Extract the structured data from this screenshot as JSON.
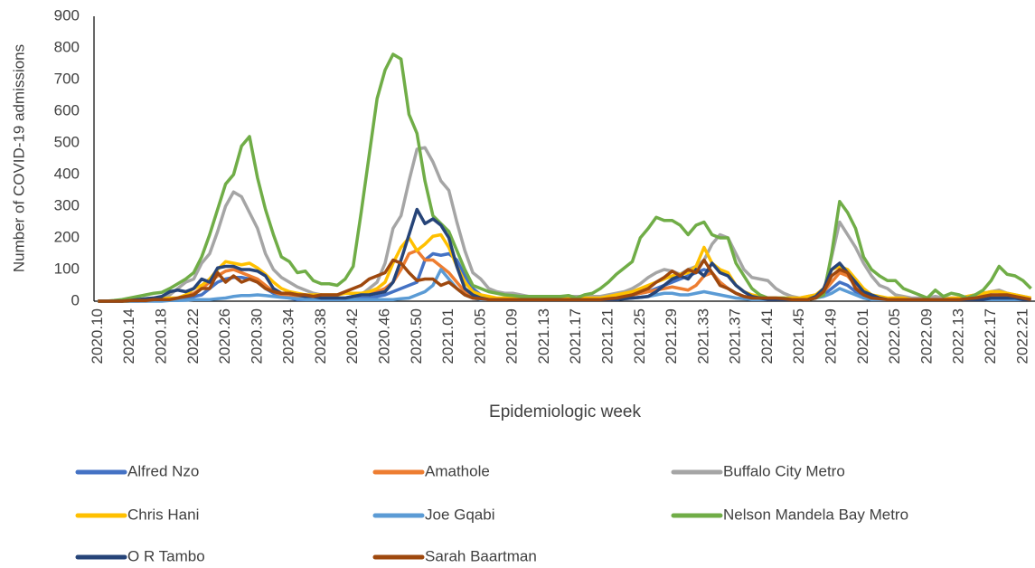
{
  "chart_data": {
    "type": "line",
    "y_label": "Number of COVID-19 admissions",
    "x_label": "Epidemiologic week",
    "categories": [
      "2020.10",
      null,
      null,
      null,
      "2020.14",
      null,
      null,
      null,
      "2020.18",
      null,
      null,
      null,
      "2020.22",
      null,
      null,
      null,
      "2020.26",
      null,
      null,
      null,
      "2020.30",
      null,
      null,
      null,
      "2020.34",
      null,
      null,
      null,
      "2020.38",
      null,
      null,
      null,
      "2020.42",
      null,
      null,
      null,
      "2020.46",
      null,
      null,
      null,
      "2020.50",
      null,
      null,
      null,
      "2021.01",
      null,
      null,
      null,
      "2021.05",
      null,
      null,
      null,
      "2021.09",
      null,
      null,
      null,
      "2021.13",
      null,
      null,
      null,
      "2021.17",
      null,
      null,
      null,
      "2021.21",
      null,
      null,
      null,
      "2021.25",
      null,
      null,
      null,
      "2021.29",
      null,
      null,
      null,
      "2021.33",
      null,
      null,
      null,
      "2021.37",
      null,
      null,
      null,
      "2021.41",
      null,
      null,
      null,
      "2021.45",
      null,
      null,
      null,
      "2021.49",
      null,
      null,
      null,
      "2022.01",
      null,
      null,
      null,
      "2022.05",
      null,
      null,
      null,
      "2022.09",
      null,
      null,
      null,
      "2022.13",
      null,
      null,
      null,
      "2022.17",
      null,
      null,
      null,
      "2022.21",
      null
    ],
    "ylim": [
      0,
      900
    ],
    "yticks": [
      0,
      100,
      200,
      300,
      400,
      500,
      600,
      700,
      800,
      900
    ],
    "legend": "bottom",
    "series": [
      {
        "name": "Alfred Nzo",
        "color": "#4472c4",
        "values": [
          0,
          0,
          0,
          0,
          0,
          0,
          2,
          2,
          5,
          5,
          5,
          10,
          15,
          20,
          40,
          60,
          70,
          75,
          75,
          70,
          60,
          40,
          25,
          15,
          10,
          5,
          5,
          5,
          5,
          5,
          5,
          5,
          5,
          10,
          10,
          15,
          20,
          30,
          40,
          50,
          60,
          130,
          150,
          145,
          150,
          130,
          80,
          40,
          20,
          10,
          5,
          5,
          5,
          5,
          5,
          5,
          5,
          5,
          5,
          5,
          5,
          5,
          5,
          5,
          5,
          10,
          15,
          20,
          25,
          30,
          40,
          50,
          60,
          70,
          80,
          90,
          100,
          90,
          60,
          40,
          25,
          15,
          10,
          5,
          5,
          5,
          5,
          5,
          5,
          5,
          10,
          20,
          40,
          60,
          50,
          30,
          15,
          10,
          5,
          5,
          5,
          5,
          5,
          5,
          5,
          5,
          5,
          5,
          5,
          5,
          5,
          10,
          10,
          15,
          10,
          10,
          5,
          5
        ]
      },
      {
        "name": "Amathole",
        "color": "#ed7d31",
        "values": [
          0,
          0,
          0,
          0,
          0,
          0,
          0,
          2,
          2,
          5,
          10,
          15,
          25,
          40,
          60,
          80,
          95,
          100,
          90,
          80,
          70,
          50,
          30,
          20,
          15,
          10,
          10,
          10,
          10,
          10,
          10,
          10,
          15,
          20,
          25,
          30,
          40,
          60,
          100,
          150,
          160,
          130,
          130,
          110,
          90,
          60,
          30,
          15,
          10,
          5,
          5,
          5,
          5,
          5,
          5,
          5,
          5,
          5,
          5,
          5,
          5,
          5,
          5,
          5,
          5,
          10,
          15,
          20,
          25,
          30,
          35,
          40,
          45,
          40,
          35,
          50,
          80,
          90,
          60,
          40,
          25,
          15,
          10,
          5,
          5,
          5,
          5,
          5,
          5,
          5,
          10,
          30,
          60,
          90,
          80,
          50,
          25,
          10,
          5,
          5,
          5,
          5,
          5,
          5,
          5,
          5,
          5,
          5,
          5,
          5,
          5,
          10,
          15,
          20,
          20,
          15,
          10,
          5
        ]
      },
      {
        "name": "Buffalo City Metro",
        "color": "#a5a5a5",
        "values": [
          0,
          0,
          0,
          0,
          2,
          5,
          8,
          10,
          12,
          20,
          40,
          60,
          70,
          120,
          150,
          220,
          300,
          345,
          330,
          280,
          230,
          150,
          100,
          75,
          60,
          45,
          35,
          25,
          20,
          15,
          10,
          10,
          15,
          20,
          40,
          60,
          120,
          230,
          270,
          380,
          480,
          485,
          440,
          380,
          350,
          250,
          160,
          90,
          70,
          40,
          30,
          25,
          25,
          20,
          15,
          15,
          15,
          15,
          15,
          15,
          15,
          15,
          15,
          15,
          20,
          25,
          30,
          40,
          55,
          75,
          90,
          100,
          95,
          85,
          100,
          110,
          130,
          180,
          210,
          200,
          150,
          100,
          75,
          70,
          65,
          40,
          25,
          15,
          10,
          15,
          20,
          30,
          140,
          250,
          210,
          170,
          120,
          80,
          50,
          40,
          20,
          15,
          10,
          10,
          10,
          15,
          10,
          10,
          10,
          15,
          20,
          25,
          30,
          35,
          25,
          20,
          15,
          10
        ]
      },
      {
        "name": "Chris Hani",
        "color": "#ffc000",
        "values": [
          0,
          0,
          0,
          0,
          0,
          2,
          5,
          5,
          8,
          10,
          10,
          20,
          40,
          50,
          70,
          100,
          125,
          120,
          115,
          120,
          105,
          85,
          60,
          40,
          30,
          25,
          20,
          20,
          20,
          20,
          20,
          25,
          25,
          25,
          30,
          40,
          60,
          120,
          170,
          200,
          160,
          180,
          205,
          210,
          170,
          110,
          60,
          30,
          20,
          15,
          10,
          10,
          10,
          10,
          10,
          10,
          10,
          10,
          10,
          10,
          10,
          10,
          10,
          10,
          15,
          20,
          25,
          30,
          40,
          50,
          60,
          70,
          80,
          85,
          90,
          110,
          170,
          120,
          100,
          90,
          50,
          30,
          20,
          15,
          10,
          10,
          10,
          10,
          10,
          15,
          20,
          40,
          100,
          110,
          100,
          70,
          40,
          20,
          15,
          10,
          10,
          10,
          5,
          5,
          5,
          5,
          5,
          10,
          10,
          15,
          20,
          25,
          30,
          30,
          25,
          20,
          15,
          10
        ]
      },
      {
        "name": "Joe Gqabi",
        "color": "#5b9bd5",
        "values": [
          0,
          0,
          0,
          0,
          0,
          0,
          0,
          0,
          0,
          2,
          2,
          3,
          5,
          5,
          5,
          8,
          10,
          15,
          18,
          18,
          20,
          18,
          15,
          12,
          10,
          8,
          5,
          5,
          5,
          5,
          5,
          5,
          5,
          5,
          5,
          5,
          5,
          5,
          8,
          10,
          20,
          30,
          50,
          100,
          70,
          40,
          20,
          10,
          5,
          5,
          5,
          5,
          5,
          5,
          5,
          5,
          5,
          5,
          5,
          5,
          5,
          5,
          5,
          5,
          5,
          5,
          8,
          10,
          12,
          15,
          20,
          25,
          25,
          20,
          20,
          25,
          30,
          25,
          20,
          15,
          10,
          8,
          5,
          5,
          5,
          5,
          5,
          5,
          5,
          5,
          10,
          15,
          25,
          40,
          30,
          20,
          10,
          5,
          5,
          5,
          5,
          5,
          5,
          5,
          5,
          5,
          5,
          5,
          5,
          5,
          5,
          5,
          5,
          5,
          5,
          5,
          5,
          5
        ]
      },
      {
        "name": "Nelson Mandela Bay Metro",
        "color": "#70ad47",
        "values": [
          0,
          0,
          2,
          5,
          10,
          15,
          20,
          25,
          28,
          40,
          55,
          70,
          90,
          140,
          210,
          290,
          370,
          400,
          490,
          520,
          390,
          290,
          210,
          140,
          125,
          90,
          95,
          65,
          55,
          55,
          50,
          70,
          110,
          280,
          460,
          640,
          730,
          780,
          765,
          590,
          530,
          380,
          270,
          245,
          220,
          160,
          100,
          50,
          40,
          30,
          25,
          20,
          18,
          15,
          15,
          15,
          15,
          15,
          15,
          18,
          10,
          20,
          25,
          40,
          60,
          85,
          105,
          125,
          200,
          230,
          265,
          255,
          255,
          240,
          210,
          240,
          250,
          210,
          200,
          200,
          120,
          80,
          40,
          20,
          10,
          10,
          10,
          5,
          5,
          5,
          10,
          20,
          150,
          315,
          280,
          230,
          140,
          100,
          80,
          65,
          65,
          40,
          30,
          20,
          10,
          35,
          15,
          25,
          20,
          10,
          20,
          35,
          65,
          110,
          85,
          80,
          65,
          40
        ]
      },
      {
        "name": "O R Tambo",
        "color": "#264478",
        "values": [
          0,
          0,
          0,
          0,
          2,
          5,
          8,
          10,
          15,
          30,
          35,
          30,
          40,
          70,
          60,
          105,
          110,
          110,
          100,
          100,
          95,
          80,
          40,
          25,
          25,
          20,
          15,
          15,
          10,
          10,
          10,
          10,
          15,
          20,
          20,
          25,
          30,
          60,
          130,
          210,
          290,
          245,
          260,
          240,
          200,
          110,
          40,
          20,
          10,
          5,
          5,
          5,
          5,
          5,
          5,
          5,
          5,
          5,
          5,
          5,
          5,
          5,
          5,
          5,
          5,
          5,
          8,
          10,
          12,
          15,
          30,
          50,
          70,
          80,
          70,
          100,
          80,
          120,
          90,
          80,
          50,
          30,
          15,
          10,
          5,
          5,
          5,
          5,
          5,
          5,
          15,
          40,
          100,
          120,
          90,
          60,
          30,
          20,
          10,
          5,
          5,
          5,
          5,
          5,
          5,
          5,
          5,
          5,
          5,
          5,
          5,
          5,
          10,
          10,
          10,
          10,
          5,
          5
        ]
      },
      {
        "name": "Sarah Baartman",
        "color": "#9e480e",
        "values": [
          0,
          0,
          0,
          0,
          2,
          2,
          2,
          5,
          5,
          5,
          10,
          15,
          20,
          40,
          40,
          90,
          60,
          80,
          60,
          70,
          60,
          40,
          30,
          25,
          25,
          20,
          20,
          15,
          20,
          20,
          20,
          30,
          40,
          50,
          70,
          80,
          90,
          130,
          120,
          90,
          65,
          70,
          70,
          50,
          60,
          40,
          20,
          10,
          8,
          5,
          5,
          5,
          5,
          5,
          5,
          5,
          5,
          5,
          5,
          5,
          5,
          5,
          5,
          5,
          8,
          10,
          15,
          20,
          30,
          40,
          60,
          75,
          95,
          80,
          100,
          90,
          130,
          90,
          50,
          40,
          25,
          15,
          10,
          10,
          10,
          10,
          8,
          5,
          5,
          5,
          10,
          30,
          80,
          100,
          90,
          40,
          20,
          10,
          8,
          5,
          5,
          5,
          5,
          5,
          5,
          5,
          5,
          5,
          5,
          8,
          10,
          15,
          20,
          20,
          20,
          15,
          10,
          5
        ]
      }
    ]
  }
}
